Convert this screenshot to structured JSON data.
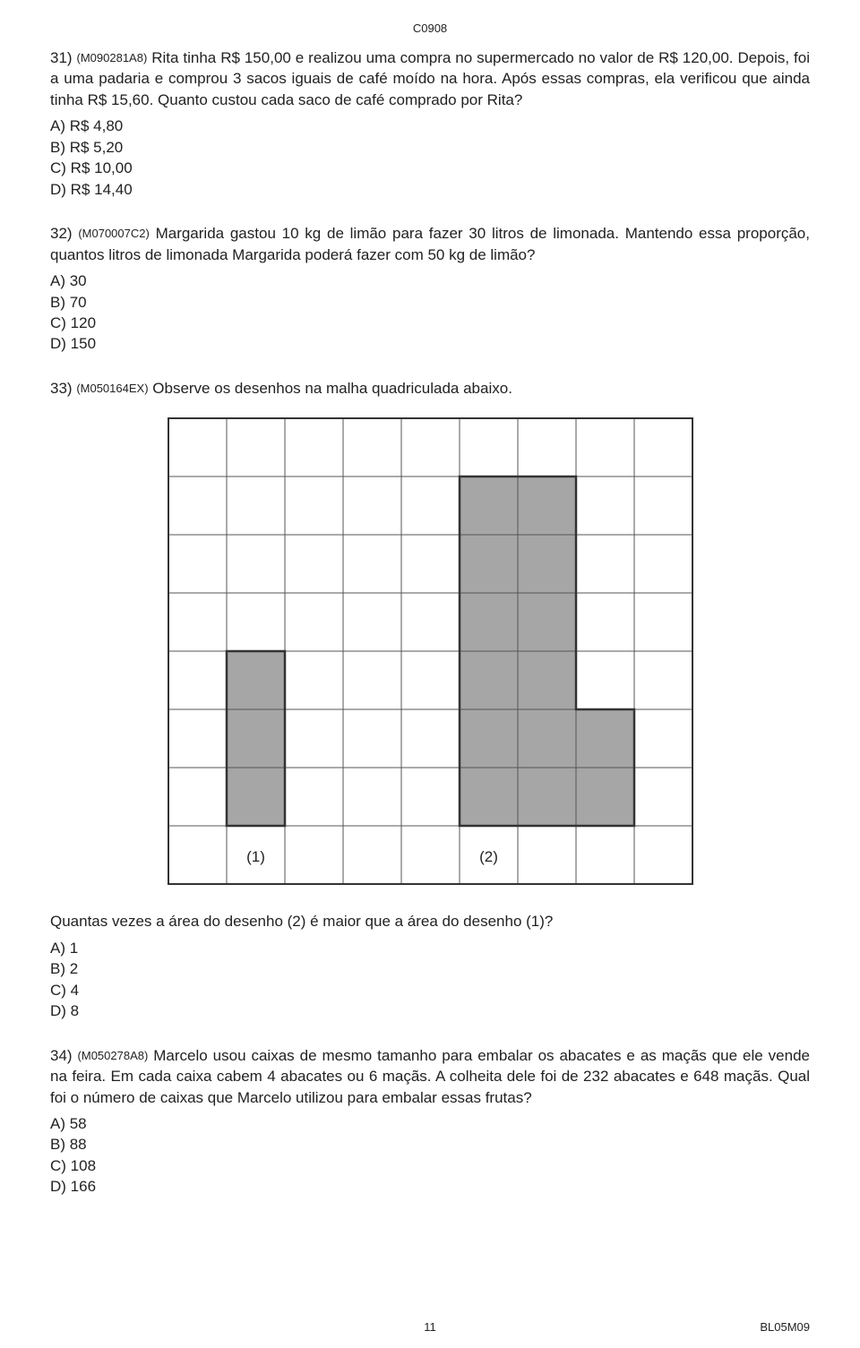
{
  "header": {
    "code": "C0908"
  },
  "colors": {
    "text": "#222222",
    "grid_line": "#555555",
    "grid_fill": "#a6a6a6",
    "outer_border": "#333333",
    "background": "#ffffff"
  },
  "grid": {
    "cols": 9,
    "rows": 8,
    "cell_size": 65,
    "outer_border_width": 2,
    "inner_line_width": 1,
    "shape_border_width": 2.5,
    "shape1": {
      "cells": [
        [
          4,
          1
        ],
        [
          5,
          1
        ],
        [
          6,
          1
        ]
      ],
      "outline": [
        [
          1,
          4
        ],
        [
          2,
          4
        ],
        [
          2,
          7
        ],
        [
          1,
          7
        ]
      ]
    },
    "shape2": {
      "cells": [
        [
          1,
          5
        ],
        [
          1,
          6
        ],
        [
          2,
          5
        ],
        [
          2,
          6
        ],
        [
          3,
          5
        ],
        [
          3,
          6
        ],
        [
          4,
          5
        ],
        [
          4,
          6
        ],
        [
          5,
          5
        ],
        [
          5,
          6
        ],
        [
          5,
          7
        ],
        [
          6,
          5
        ],
        [
          6,
          6
        ],
        [
          6,
          7
        ]
      ],
      "outline": [
        [
          5,
          1
        ],
        [
          7,
          1
        ],
        [
          7,
          5
        ],
        [
          8,
          5
        ],
        [
          8,
          7
        ],
        [
          5,
          7
        ]
      ]
    },
    "labels": {
      "row": 7,
      "shape1_col": 1,
      "shape1_text": "(1)",
      "shape2_col": 5,
      "shape2_text": "(2)"
    }
  },
  "questions": [
    {
      "num": "31)",
      "code": "(M090281A8)",
      "text": "Rita tinha R$ 150,00 e realizou uma compra no supermercado no valor de R$ 120,00. Depois, foi a uma padaria e comprou 3 sacos iguais de café moído na hora. Após essas compras, ela verificou que ainda tinha R$ 15,60. Quanto custou cada saco de café comprado por Rita?",
      "options": [
        "A) R$ 4,80",
        "B) R$ 5,20",
        "C) R$ 10,00",
        "D) R$ 14,40"
      ]
    },
    {
      "num": "32)",
      "code": "(M070007C2)",
      "text": "Margarida gastou 10 kg de limão para fazer 30 litros de limonada. Mantendo essa proporção, quantos litros de limonada Margarida poderá fazer com 50 kg de limão?",
      "options": [
        "A) 30",
        "B) 70",
        "C) 120",
        "D) 150"
      ]
    },
    {
      "num": "33)",
      "code": "(M050164EX)",
      "text": "Observe os desenhos na malha quadriculada abaixo.",
      "hasGrid": true,
      "after": "Quantas vezes a área do desenho (2) é maior que a área do desenho (1)?",
      "options": [
        "A) 1",
        "B) 2",
        "C) 4",
        "D) 8"
      ]
    },
    {
      "num": "34)",
      "code": "(M050278A8)",
      "text": "Marcelo usou caixas de mesmo tamanho para embalar os abacates e as maçãs que ele vende na feira. Em cada caixa cabem 4 abacates ou 6 maçãs. A colheita dele foi de 232 abacates e 648 maçãs. Qual foi o número de caixas que Marcelo utilizou para embalar essas frutas?",
      "options": [
        "A) 58",
        "B) 88",
        "C) 108",
        "D) 166"
      ]
    }
  ],
  "footer": {
    "page": "11",
    "right": "BL05M09"
  }
}
